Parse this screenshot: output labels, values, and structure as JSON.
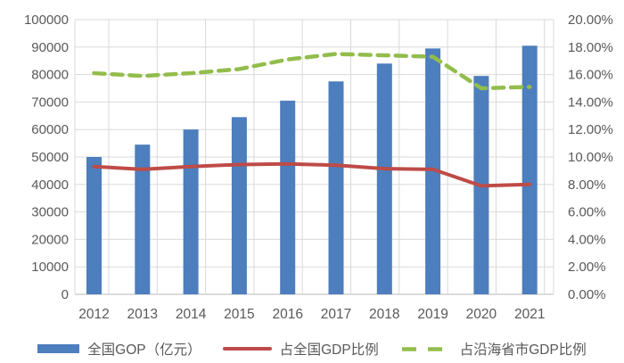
{
  "chart_data": {
    "type": "combo",
    "title": "",
    "categories": [
      "2012",
      "2013",
      "2014",
      "2015",
      "2016",
      "2017",
      "2018",
      "2019",
      "2020",
      "2021"
    ],
    "series": [
      {
        "name": "全国GOP（亿元）",
        "type": "bar",
        "axis": "left",
        "color": "#4d7ebd",
        "values": [
          50000,
          54500,
          60000,
          64500,
          70500,
          77500,
          84000,
          89500,
          79500,
          90500
        ]
      },
      {
        "name": "占全国GDP比例",
        "type": "line",
        "style": "solid",
        "axis": "right",
        "color": "#be4b48",
        "values": [
          9.3,
          9.1,
          9.3,
          9.45,
          9.5,
          9.4,
          9.15,
          9.1,
          7.9,
          8.0
        ]
      },
      {
        "name": "占沿海省市GDP比例",
        "type": "line",
        "style": "dashed",
        "axis": "right",
        "color": "#92bd4c",
        "values": [
          16.1,
          15.9,
          16.1,
          16.4,
          17.1,
          17.5,
          17.4,
          17.3,
          15.0,
          15.1
        ]
      }
    ],
    "left_axis": {
      "min": 0,
      "max": 100000,
      "step": 10000,
      "tick_labels": [
        "0",
        "10000",
        "20000",
        "30000",
        "40000",
        "50000",
        "60000",
        "70000",
        "80000",
        "90000",
        "100000"
      ]
    },
    "right_axis": {
      "min": 0,
      "max": 20,
      "step": 2,
      "tick_labels": [
        "0.00%",
        "2.00%",
        "4.00%",
        "6.00%",
        "8.00%",
        "10.00%",
        "12.00%",
        "14.00%",
        "16.00%",
        "18.00%",
        "20.00%"
      ]
    },
    "grid": {
      "horizontal": true,
      "vertical": true
    },
    "legend_position": "bottom",
    "text_color": "#595959",
    "gridline_color": "#d9d9d9",
    "baseline_color": "#b9b9b9"
  }
}
